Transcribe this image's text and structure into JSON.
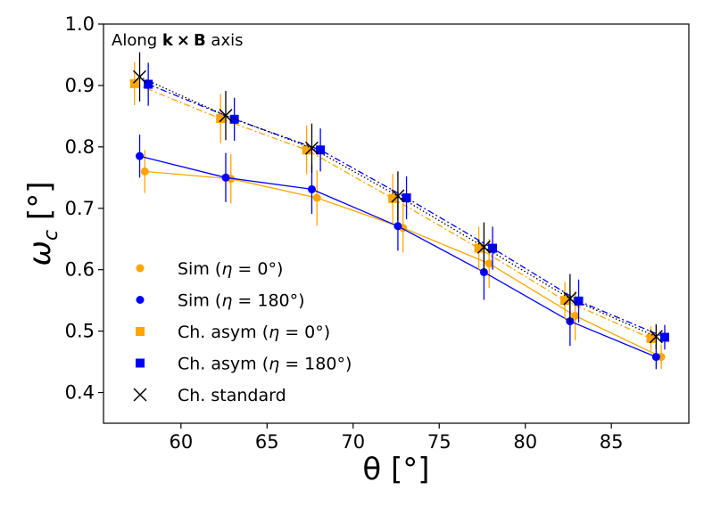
{
  "chart_data": {
    "type": "scatter",
    "title": "",
    "annotation": {
      "prefix": "Along ",
      "k": "k",
      "times": "×",
      "b": "B",
      "suffix": " axis"
    },
    "xlabel": "θ [°]",
    "ylabel": "ωc [°]",
    "ylabel_parts": {
      "omega": "ω",
      "sub": "c",
      "unit": " [°]"
    },
    "xlim": [
      55.5,
      89.5
    ],
    "ylim": [
      0.35,
      1.0
    ],
    "xticks": [
      60,
      65,
      70,
      75,
      80,
      85
    ],
    "xtick_labels": [
      "60",
      "65",
      "70",
      "75",
      "80",
      "85"
    ],
    "yticks": [
      0.4,
      0.5,
      0.6,
      0.7,
      0.8,
      0.9,
      1.0
    ],
    "ytick_labels": [
      "0.4",
      "0.5",
      "0.6",
      "0.7",
      "0.8",
      "0.9",
      "1.0"
    ],
    "grid": false,
    "legend_position": "lower-left",
    "series": [
      {
        "name": "Sim (η = 0°)",
        "marker": "circle",
        "line": "solid",
        "color": "#FFA500",
        "x": [
          57.9,
          62.9,
          67.9,
          72.9,
          77.9,
          82.9,
          87.9
        ],
        "y": [
          0.76,
          0.748,
          0.717,
          0.668,
          0.61,
          0.525,
          0.458
        ],
        "err": [
          0.035,
          0.04,
          0.045,
          0.04,
          0.04,
          0.04,
          0.02
        ]
      },
      {
        "name": "Sim (η = 180°)",
        "marker": "circle",
        "line": "solid",
        "color": "#0000FF",
        "x": [
          57.6,
          62.6,
          67.6,
          72.6,
          77.6,
          82.6,
          87.6
        ],
        "y": [
          0.785,
          0.75,
          0.731,
          0.671,
          0.596,
          0.516,
          0.458
        ],
        "err": [
          0.035,
          0.04,
          0.04,
          0.04,
          0.045,
          0.04,
          0.02
        ]
      },
      {
        "name": "Ch. asym (η = 0°)",
        "marker": "square",
        "line": "dashdot",
        "color": "#FFA500",
        "x": [
          57.3,
          62.3,
          67.3,
          72.3,
          77.3,
          82.3,
          87.3
        ],
        "y": [
          0.903,
          0.846,
          0.795,
          0.716,
          0.635,
          0.55,
          0.488
        ],
        "err": [
          0.035,
          0.04,
          0.04,
          0.04,
          0.035,
          0.03,
          0.02
        ]
      },
      {
        "name": "Ch. asym (η = 180°)",
        "marker": "square",
        "line": "dashdot",
        "color": "#0000FF",
        "x": [
          58.1,
          63.1,
          68.1,
          73.1,
          78.1,
          83.1,
          88.1
        ],
        "y": [
          0.902,
          0.845,
          0.795,
          0.717,
          0.635,
          0.549,
          0.49
        ],
        "err": [
          0.035,
          0.035,
          0.035,
          0.035,
          0.035,
          0.035,
          0.02
        ]
      },
      {
        "name": "Ch. standard",
        "marker": "x",
        "line": "dotted",
        "color": "#000000",
        "x": [
          57.6,
          62.6,
          67.6,
          72.6,
          77.6,
          82.6,
          87.6
        ],
        "y": [
          0.914,
          0.851,
          0.798,
          0.72,
          0.637,
          0.553,
          0.491
        ],
        "err": [
          0.04,
          0.04,
          0.04,
          0.04,
          0.04,
          0.04,
          0.02
        ]
      }
    ],
    "legend": [
      {
        "label": "Sim (",
        "greek": "η",
        "value": " = 0°",
        "close": ")"
      },
      {
        "label": "Sim (",
        "greek": "η",
        "value": " = 180°",
        "close": ")"
      },
      {
        "label": "Ch. asym (",
        "greek": "η",
        "value": " = 0°",
        "close": ")"
      },
      {
        "label": "Ch. asym (",
        "greek": "η",
        "value": " = 180°",
        "close": ")"
      },
      {
        "label": "Ch. standard",
        "greek": "",
        "value": "",
        "close": ""
      }
    ]
  }
}
